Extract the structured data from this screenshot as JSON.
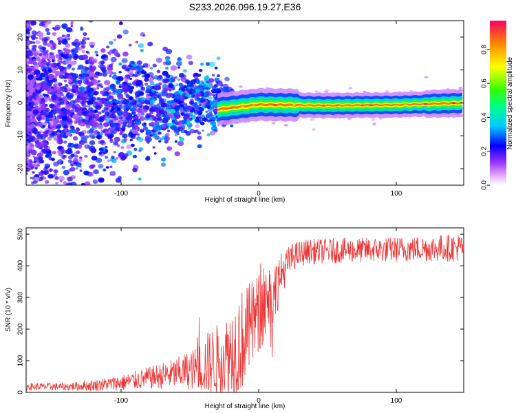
{
  "title": "S233.2026.096.19.27.E36",
  "chart_data": [
    {
      "type": "heatmap",
      "xlabel": "Height of straight line (km)",
      "ylabel": "Frequency (Hz)",
      "xlim": [
        -169,
        149
      ],
      "ylim": [
        -25,
        25
      ],
      "x_ticks": [
        -100,
        0,
        100
      ],
      "x_tick_labels": [
        "-100",
        "0",
        "100"
      ],
      "y_ticks": [
        20,
        10,
        0,
        -10,
        -20
      ],
      "y_tick_labels": [
        "20",
        "10",
        "0",
        "-10",
        "-20"
      ],
      "colorbar": {
        "label": "Normalized spectral amplitude",
        "range": [
          0,
          0.97
        ],
        "ticks": [
          0.0,
          0.2,
          0.4,
          0.6,
          0.8
        ],
        "tick_labels": [
          "0.0",
          "0.2",
          "0.4",
          "0.6",
          "0.8"
        ]
      },
      "ridge": {
        "description": "narrow spectral line",
        "x_start": -30,
        "x_end": 149,
        "freq_hz": [
          {
            "x": -30,
            "f": -2.0
          },
          {
            "x": 0,
            "f": -0.5
          },
          {
            "x": 50,
            "f": -0.8
          },
          {
            "x": 100,
            "f": -0.6
          },
          {
            "x": 149,
            "f": 0.0
          }
        ],
        "peak_amplitude": 0.95
      }
    },
    {
      "type": "line",
      "xlabel": "Height of straight line (km)",
      "ylabel": "SNR (10 * v/v)",
      "xlim": [
        -169,
        149
      ],
      "ylim": [
        0,
        520
      ],
      "x_ticks": [
        -100,
        0,
        100
      ],
      "x_tick_labels": [
        "-100",
        "0",
        "100"
      ],
      "y_ticks": [
        0,
        100,
        200,
        300,
        400,
        500
      ],
      "y_tick_labels": [
        "0",
        "100",
        "200",
        "300",
        "400",
        "500"
      ],
      "series_color": "#ee3333",
      "envelope": [
        {
          "x": -169,
          "mean": 18,
          "spread": 12
        },
        {
          "x": -140,
          "mean": 18,
          "spread": 12
        },
        {
          "x": -120,
          "mean": 22,
          "spread": 18
        },
        {
          "x": -100,
          "mean": 30,
          "spread": 25
        },
        {
          "x": -80,
          "mean": 45,
          "spread": 35
        },
        {
          "x": -60,
          "mean": 60,
          "spread": 50
        },
        {
          "x": -45,
          "mean": 75,
          "spread": 70
        },
        {
          "x": -35,
          "mean": 95,
          "spread": 110
        },
        {
          "x": -25,
          "mean": 110,
          "spread": 120
        },
        {
          "x": -15,
          "mean": 150,
          "spread": 170
        },
        {
          "x": -8,
          "mean": 190,
          "spread": 150
        },
        {
          "x": 0,
          "mean": 250,
          "spread": 130
        },
        {
          "x": 10,
          "mean": 300,
          "spread": 110
        },
        {
          "x": 15,
          "mean": 360,
          "spread": 80
        },
        {
          "x": 20,
          "mean": 400,
          "spread": 55
        },
        {
          "x": 25,
          "mean": 430,
          "spread": 45
        },
        {
          "x": 35,
          "mean": 445,
          "spread": 40
        },
        {
          "x": 60,
          "mean": 448,
          "spread": 40
        },
        {
          "x": 100,
          "mean": 452,
          "spread": 40
        },
        {
          "x": 149,
          "mean": 458,
          "spread": 45
        }
      ]
    }
  ]
}
